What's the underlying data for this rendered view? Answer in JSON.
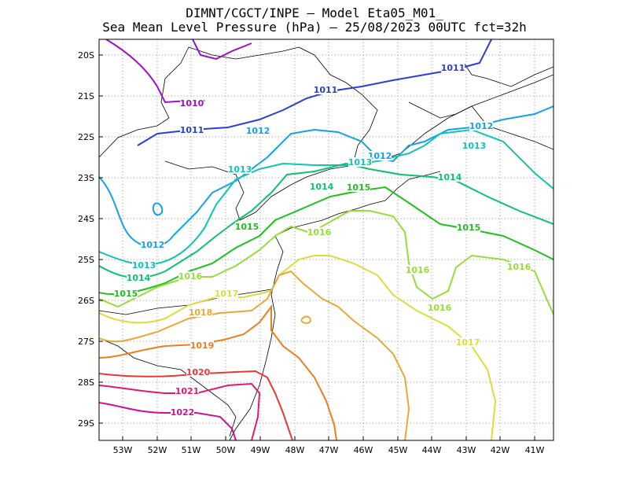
{
  "title": {
    "line1": "DIMNT/CGCT/INPE –  Model Eta05_M01_",
    "line2": "Sea Mean Level Pressure (hPa) – 25/08/2023 00UTC fct=32h"
  },
  "axes": {
    "lat_labels": [
      "20S",
      "21S",
      "22S",
      "23S",
      "24S",
      "25S",
      "26S",
      "27S",
      "28S",
      "29S"
    ],
    "lon_labels": [
      "53W",
      "52W",
      "51W",
      "50W",
      "49W",
      "48W",
      "47W",
      "46W",
      "45W",
      "44W",
      "43W",
      "42W",
      "41W"
    ]
  },
  "contours": [
    {
      "level": "1010",
      "color": "#9a10c8"
    },
    {
      "level": "1011",
      "color": "#2b3fd8"
    },
    {
      "level": "1012",
      "color": "#15a0e8"
    },
    {
      "level": "1013",
      "color": "#10c4b8"
    },
    {
      "level": "1014",
      "color": "#10c070"
    },
    {
      "level": "1015",
      "color": "#20c020"
    },
    {
      "level": "1016",
      "color": "#98dc3c"
    },
    {
      "level": "1017",
      "color": "#dcdc3c"
    },
    {
      "level": "1018",
      "color": "#e8a838"
    },
    {
      "level": "1019",
      "color": "#e88020"
    },
    {
      "level": "1020",
      "color": "#e83838"
    },
    {
      "level": "1021",
      "color": "#e01a70"
    },
    {
      "level": "1022",
      "color": "#d01090"
    }
  ]
}
